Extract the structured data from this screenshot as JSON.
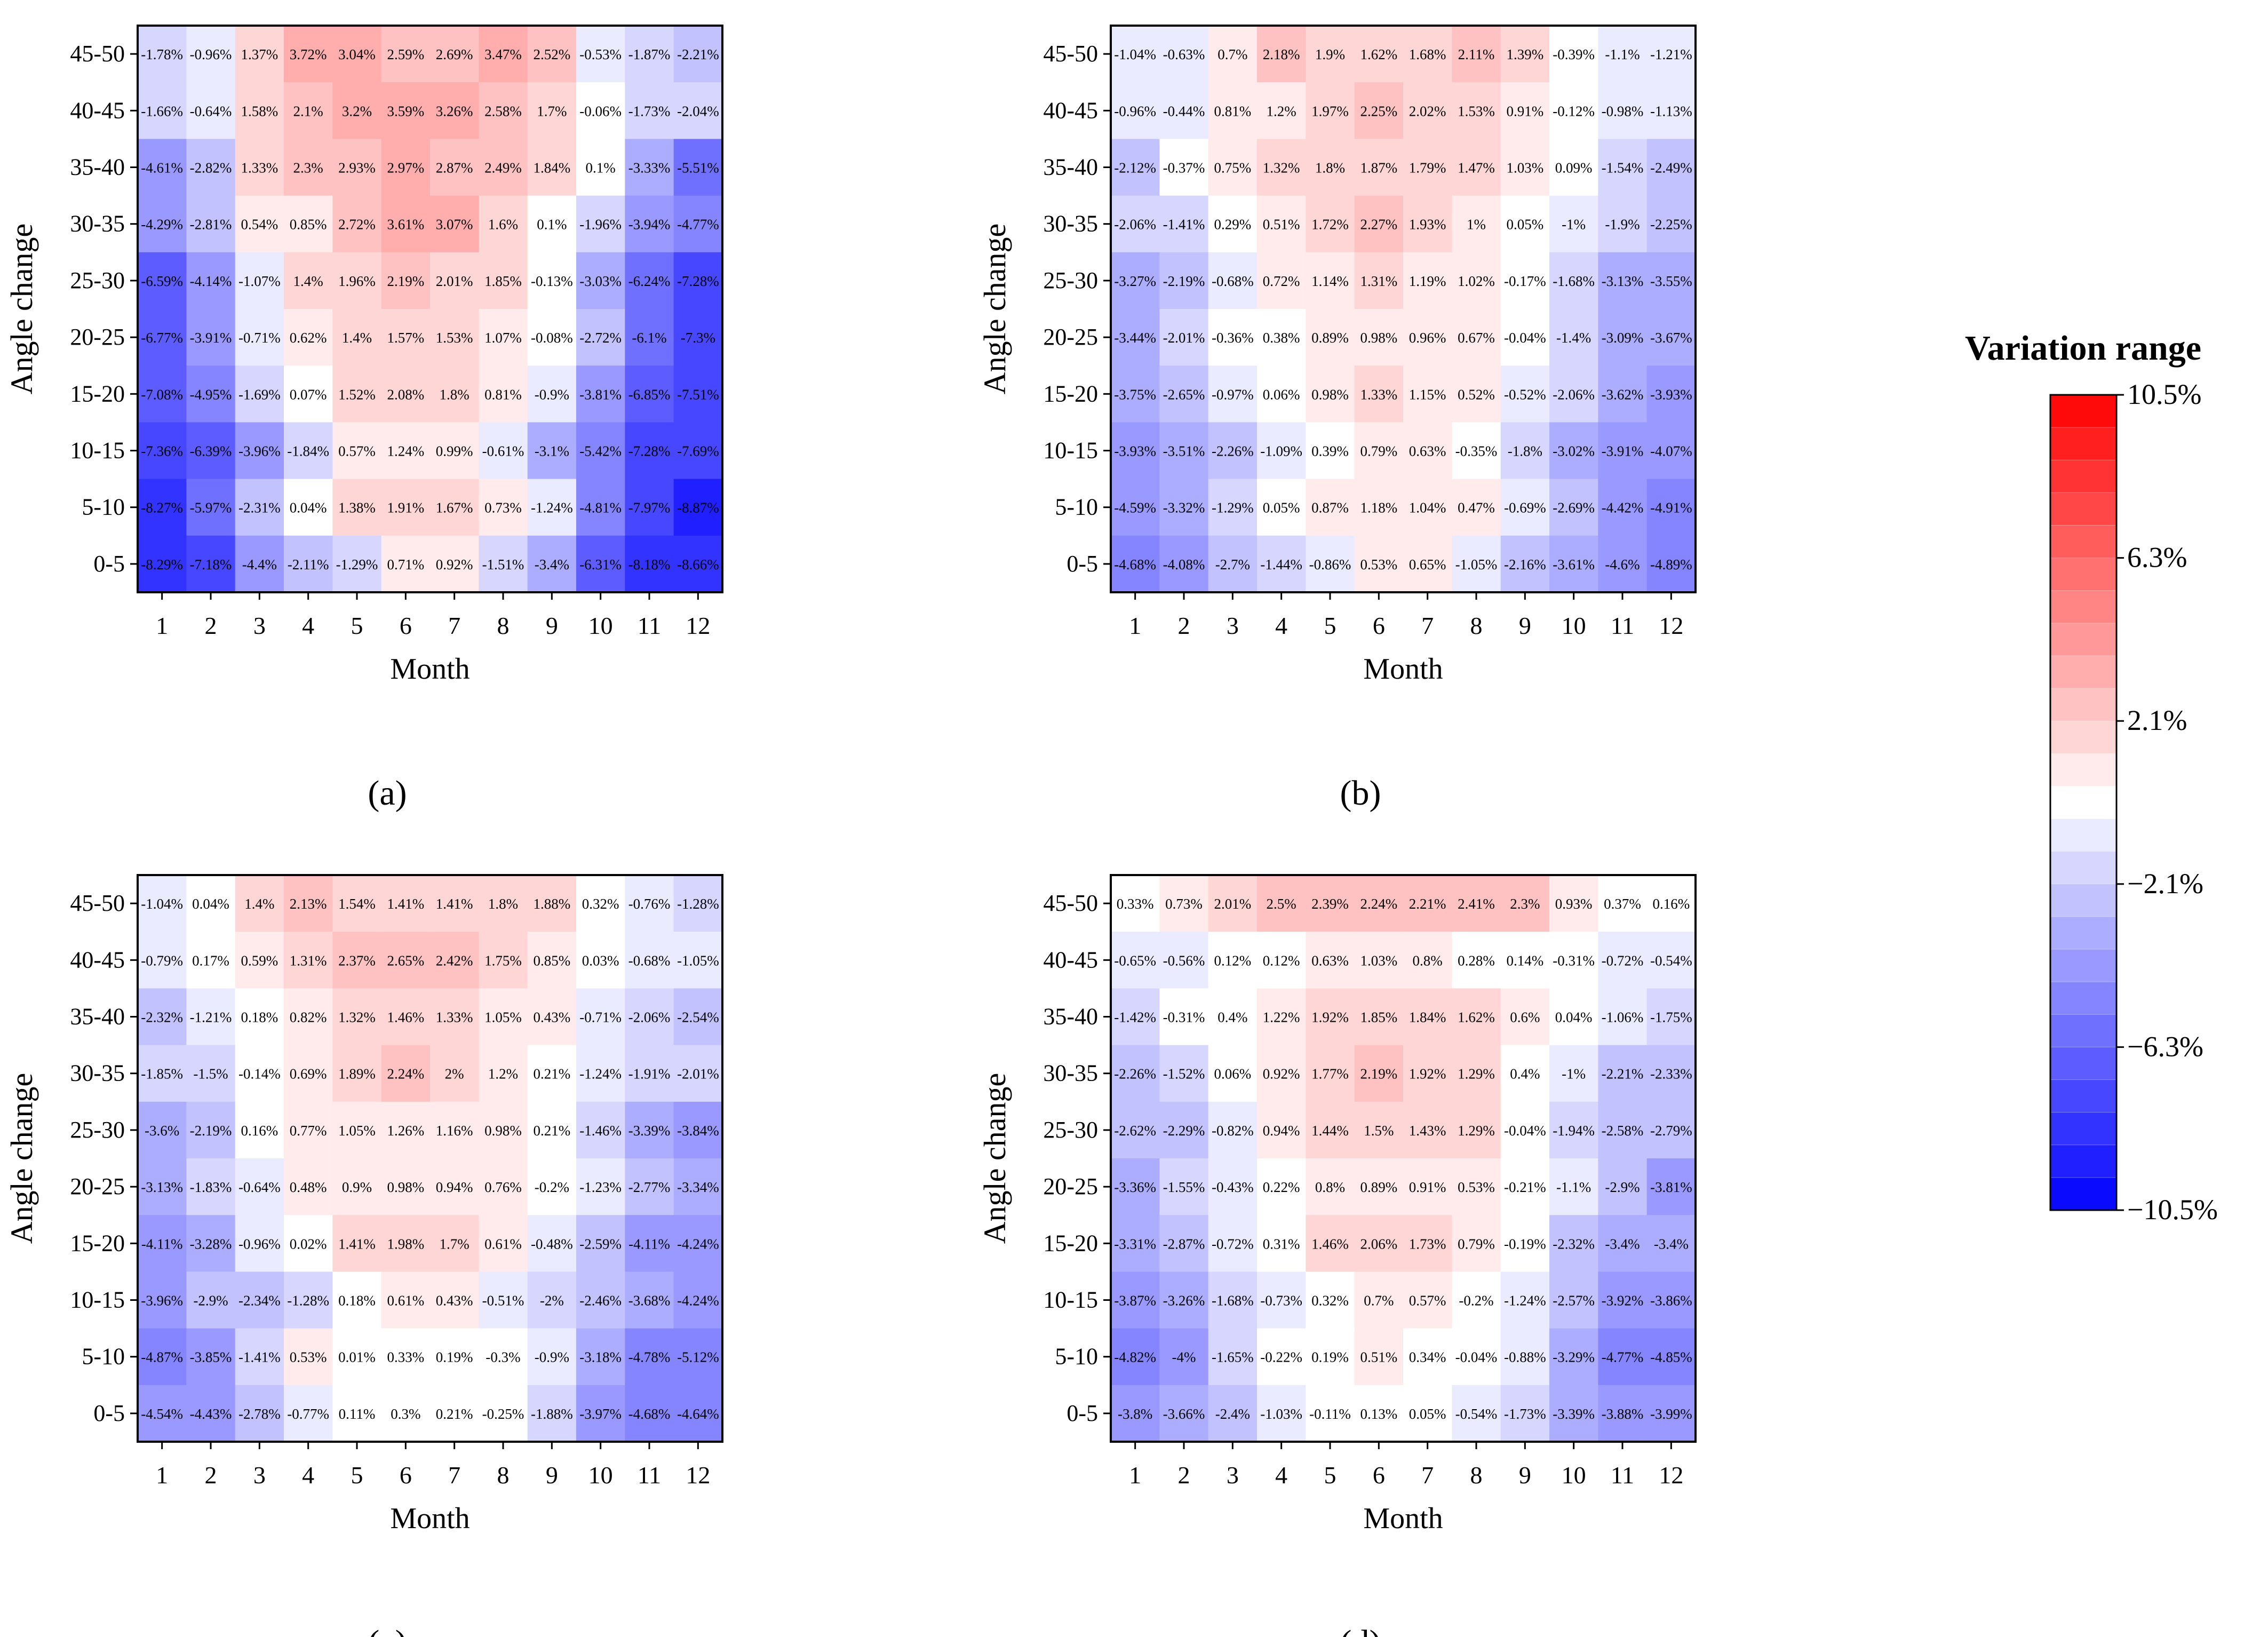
{
  "colorbar": {
    "title": "Variation range",
    "tick_labels": [
      "10.5%",
      "6.3%",
      "2.1%",
      "−2.1%",
      "−6.3%",
      "−10.5%"
    ],
    "tick_values": [
      10.5,
      6.3,
      2.1,
      -2.1,
      -6.3,
      -10.5
    ],
    "range": [
      -10.5,
      10.5
    ],
    "steps": 25,
    "colors": {
      "min": "#0000ff",
      "mid": "#ffffff",
      "max": "#ff0000"
    }
  },
  "chart_data": [
    {
      "type": "heatmap",
      "panel_label": "(a)",
      "xlabel": "Month",
      "ylabel": "Angle change",
      "x": [
        "1",
        "2",
        "3",
        "4",
        "5",
        "6",
        "7",
        "8",
        "9",
        "10",
        "11",
        "12"
      ],
      "y": [
        "45-50",
        "40-45",
        "35-40",
        "30-35",
        "25-30",
        "20-25",
        "15-20",
        "10-15",
        "5-10",
        "0-5"
      ],
      "cell_suffix": "%",
      "values": [
        [
          -1.78,
          -0.96,
          1.37,
          3.72,
          3.04,
          2.59,
          2.69,
          3.47,
          2.52,
          -0.53,
          -1.87,
          -2.21
        ],
        [
          -1.66,
          -0.64,
          1.58,
          2.1,
          3.2,
          3.59,
          3.26,
          2.58,
          1.7,
          -0.06,
          -1.73,
          -2.04
        ],
        [
          -4.61,
          -2.82,
          1.33,
          2.3,
          2.93,
          2.97,
          2.87,
          2.49,
          1.84,
          0.1,
          -3.33,
          -5.51
        ],
        [
          -4.29,
          -2.81,
          0.54,
          0.85,
          2.72,
          3.61,
          3.07,
          1.6,
          0.1,
          -1.96,
          -3.94,
          -4.77
        ],
        [
          -6.59,
          -4.14,
          -1.07,
          1.4,
          1.96,
          2.19,
          2.01,
          1.85,
          -0.13,
          -3.03,
          -6.24,
          -7.28
        ],
        [
          -6.77,
          -3.91,
          -0.71,
          0.62,
          1.4,
          1.57,
          1.53,
          1.07,
          -0.08,
          -2.72,
          -6.1,
          -7.3
        ],
        [
          -7.08,
          -4.95,
          -1.69,
          0.07,
          1.52,
          2.08,
          1.8,
          0.81,
          -0.9,
          -3.81,
          -6.85,
          -7.51
        ],
        [
          -7.36,
          -6.39,
          -3.96,
          -1.84,
          0.57,
          1.24,
          0.99,
          -0.61,
          -3.1,
          -5.42,
          -7.28,
          -7.69
        ],
        [
          -8.27,
          -5.97,
          -2.31,
          0.04,
          1.38,
          1.91,
          1.67,
          0.73,
          -1.24,
          -4.81,
          -7.97,
          -8.87
        ],
        [
          -8.29,
          -7.18,
          -4.4,
          -2.11,
          -1.29,
          0.71,
          0.92,
          -1.51,
          -3.4,
          -6.31,
          -8.18,
          -8.66
        ]
      ]
    },
    {
      "type": "heatmap",
      "panel_label": "(b)",
      "xlabel": "Month",
      "ylabel": "Angle change",
      "x": [
        "1",
        "2",
        "3",
        "4",
        "5",
        "6",
        "7",
        "8",
        "9",
        "10",
        "11",
        "12"
      ],
      "y": [
        "45-50",
        "40-45",
        "35-40",
        "30-35",
        "25-30",
        "20-25",
        "15-20",
        "10-15",
        "5-10",
        "0-5"
      ],
      "cell_suffix": "%",
      "values": [
        [
          -1.04,
          -0.63,
          0.7,
          2.18,
          1.9,
          1.62,
          1.68,
          2.11,
          1.39,
          -0.39,
          -1.1,
          -1.21
        ],
        [
          -0.96,
          -0.44,
          0.81,
          1.2,
          1.97,
          2.25,
          2.02,
          1.53,
          0.91,
          -0.12,
          -0.98,
          -1.13
        ],
        [
          -2.12,
          -0.37,
          0.75,
          1.32,
          1.8,
          1.87,
          1.79,
          1.47,
          1.03,
          0.09,
          -1.54,
          -2.49
        ],
        [
          -2.06,
          -1.41,
          0.29,
          0.51,
          1.72,
          2.27,
          1.93,
          1,
          0.05,
          -1,
          -1.9,
          -2.25
        ],
        [
          -3.27,
          -2.19,
          -0.68,
          0.72,
          1.14,
          1.31,
          1.19,
          1.02,
          -0.17,
          -1.68,
          -3.13,
          -3.55
        ],
        [
          -3.44,
          -2.01,
          -0.36,
          0.38,
          0.89,
          0.98,
          0.96,
          0.67,
          -0.04,
          -1.4,
          -3.09,
          -3.67
        ],
        [
          -3.75,
          -2.65,
          -0.97,
          0.06,
          0.98,
          1.33,
          1.15,
          0.52,
          -0.52,
          -2.06,
          -3.62,
          -3.93
        ],
        [
          -3.93,
          -3.51,
          -2.26,
          -1.09,
          0.39,
          0.79,
          0.63,
          -0.35,
          -1.8,
          -3.02,
          -3.91,
          -4.07
        ],
        [
          -4.59,
          -3.32,
          -1.29,
          0.05,
          0.87,
          1.18,
          1.04,
          0.47,
          -0.69,
          -2.69,
          -4.42,
          -4.91
        ],
        [
          -4.68,
          -4.08,
          -2.7,
          -1.44,
          -0.86,
          0.53,
          0.65,
          -1.05,
          -2.16,
          -3.61,
          -4.6,
          -4.89
        ]
      ]
    },
    {
      "type": "heatmap",
      "panel_label": "(c)",
      "xlabel": "Month",
      "ylabel": "Angle change",
      "x": [
        "1",
        "2",
        "3",
        "4",
        "5",
        "6",
        "7",
        "8",
        "9",
        "10",
        "11",
        "12"
      ],
      "y": [
        "45-50",
        "40-45",
        "35-40",
        "30-35",
        "25-30",
        "20-25",
        "15-20",
        "10-15",
        "5-10",
        "0-5"
      ],
      "cell_suffix": "%",
      "values": [
        [
          -1.04,
          0.04,
          1.4,
          2.13,
          1.54,
          1.41,
          1.41,
          1.8,
          1.88,
          0.32,
          -0.76,
          -1.28
        ],
        [
          -0.79,
          0.17,
          0.59,
          1.31,
          2.37,
          2.65,
          2.42,
          1.75,
          0.85,
          0.03,
          -0.68,
          -1.05
        ],
        [
          -2.32,
          -1.21,
          0.18,
          0.82,
          1.32,
          1.46,
          1.33,
          1.05,
          0.43,
          -0.71,
          -2.06,
          -2.54
        ],
        [
          -1.85,
          -1.5,
          -0.14,
          0.69,
          1.89,
          2.24,
          2,
          1.2,
          0.21,
          -1.24,
          -1.91,
          -2.01
        ],
        [
          -3.6,
          -2.19,
          0.16,
          0.77,
          1.05,
          1.26,
          1.16,
          0.98,
          0.21,
          -1.46,
          -3.39,
          -3.84
        ],
        [
          -3.13,
          -1.83,
          -0.64,
          0.48,
          0.9,
          0.98,
          0.94,
          0.76,
          -0.2,
          -1.23,
          -2.77,
          -3.34
        ],
        [
          -4.11,
          -3.28,
          -0.96,
          0.02,
          1.41,
          1.98,
          1.7,
          0.61,
          -0.48,
          -2.59,
          -4.11,
          -4.24
        ],
        [
          -3.96,
          -2.9,
          -2.34,
          -1.28,
          0.18,
          0.61,
          0.43,
          -0.51,
          -2,
          -2.46,
          -3.68,
          -4.24
        ],
        [
          -4.87,
          -3.85,
          -1.41,
          0.53,
          0.01,
          0.33,
          0.19,
          -0.3,
          -0.9,
          -3.18,
          -4.78,
          -5.12
        ],
        [
          -4.54,
          -4.43,
          -2.78,
          -0.77,
          0.11,
          0.3,
          0.21,
          -0.25,
          -1.88,
          -3.97,
          -4.68,
          -4.64
        ]
      ]
    },
    {
      "type": "heatmap",
      "panel_label": "(d)",
      "xlabel": "Month",
      "ylabel": "Angle change",
      "x": [
        "1",
        "2",
        "3",
        "4",
        "5",
        "6",
        "7",
        "8",
        "9",
        "10",
        "11",
        "12"
      ],
      "y": [
        "45-50",
        "40-45",
        "35-40",
        "30-35",
        "25-30",
        "20-25",
        "15-20",
        "10-15",
        "5-10",
        "0-5"
      ],
      "cell_suffix": "%",
      "values": [
        [
          0.33,
          0.73,
          2.01,
          2.5,
          2.39,
          2.24,
          2.21,
          2.41,
          2.3,
          0.93,
          0.37,
          0.16
        ],
        [
          -0.65,
          -0.56,
          0.12,
          0.12,
          0.63,
          1.03,
          0.8,
          0.28,
          0.14,
          -0.31,
          -0.72,
          -0.54
        ],
        [
          -1.42,
          -0.31,
          0.4,
          1.22,
          1.92,
          1.85,
          1.84,
          1.62,
          0.6,
          0.04,
          -1.06,
          -1.75
        ],
        [
          -2.26,
          -1.52,
          0.06,
          0.92,
          1.77,
          2.19,
          1.92,
          1.29,
          0.4,
          -1,
          -2.21,
          -2.33
        ],
        [
          -2.62,
          -2.29,
          -0.82,
          0.94,
          1.44,
          1.5,
          1.43,
          1.29,
          -0.04,
          -1.94,
          -2.58,
          -2.79
        ],
        [
          -3.36,
          -1.55,
          -0.43,
          0.22,
          0.8,
          0.89,
          0.91,
          0.53,
          -0.21,
          -1.1,
          -2.9,
          -3.81
        ],
        [
          -3.31,
          -2.87,
          -0.72,
          0.31,
          1.46,
          2.06,
          1.73,
          0.79,
          -0.19,
          -2.32,
          -3.4,
          -3.4
        ],
        [
          -3.87,
          -3.26,
          -1.68,
          -0.73,
          0.32,
          0.7,
          0.57,
          -0.2,
          -1.24,
          -2.57,
          -3.92,
          -3.86
        ],
        [
          -4.82,
          -4,
          -1.65,
          -0.22,
          0.19,
          0.51,
          0.34,
          -0.04,
          -0.88,
          -3.29,
          -4.77,
          -4.85
        ],
        [
          -3.8,
          -3.66,
          -2.4,
          -1.03,
          -0.11,
          0.13,
          0.05,
          -0.54,
          -1.73,
          -3.39,
          -3.88,
          -3.99
        ]
      ]
    }
  ]
}
